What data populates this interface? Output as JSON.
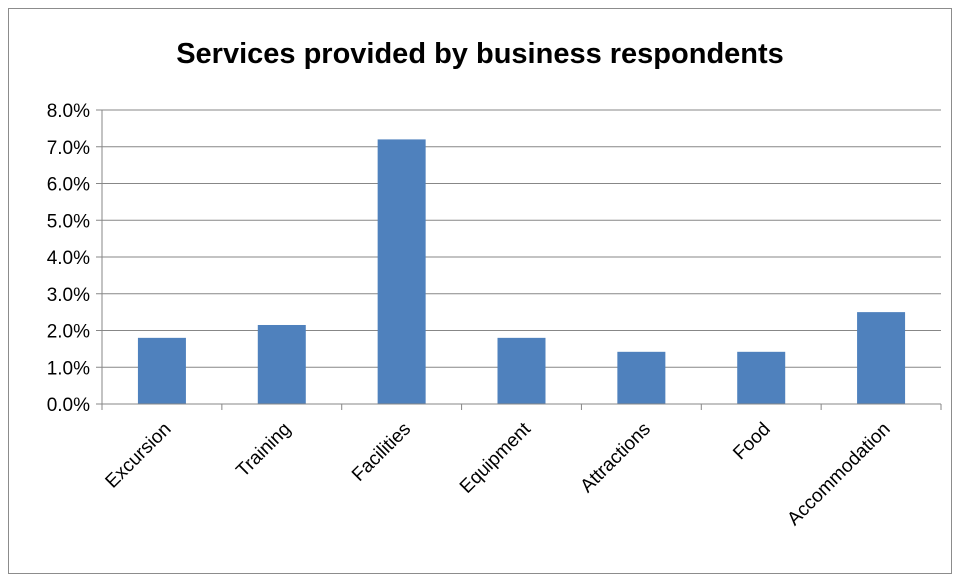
{
  "chart_data": {
    "type": "bar",
    "title": "Services provided by business respondents",
    "categories": [
      "Excursion",
      "Training",
      "Facilities",
      "Equipment",
      "Attractions",
      "Food",
      "Accommodation"
    ],
    "values": [
      1.8,
      2.15,
      7.2,
      1.8,
      1.42,
      1.42,
      2.5
    ],
    "value_unit": "%",
    "ylim": [
      0,
      8
    ],
    "yticks": [
      "0.0%",
      "1.0%",
      "2.0%",
      "3.0%",
      "4.0%",
      "5.0%",
      "6.0%",
      "7.0%",
      "8.0%"
    ],
    "xlabel": "",
    "ylabel": "",
    "grid": true,
    "legend": "none",
    "bar_color": "#4f81bd",
    "grid_color": "#878787"
  }
}
